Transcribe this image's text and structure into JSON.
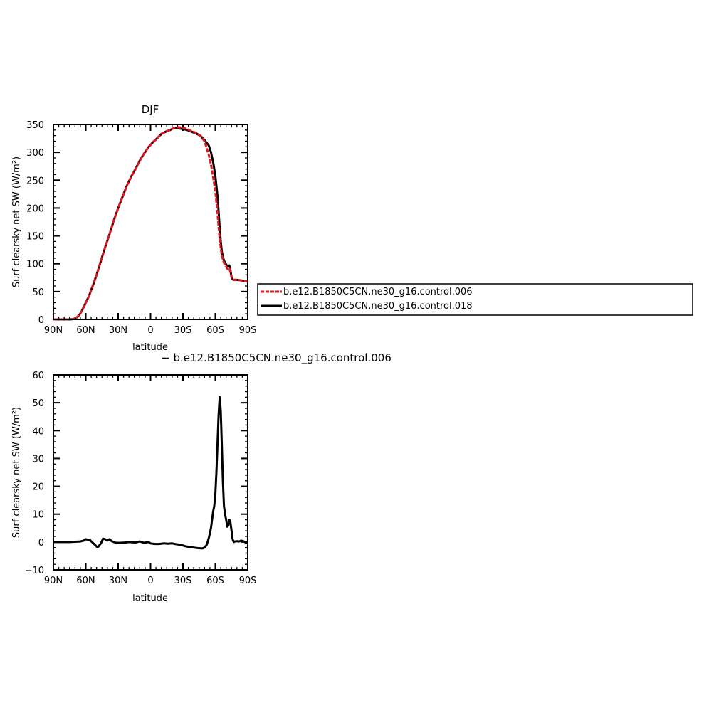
{
  "chart_data": [
    {
      "type": "line",
      "title": "DJF",
      "xlabel": "latitude",
      "ylabel": "Surf clearsky net SW (W/m²)",
      "xlim": [
        90,
        -90
      ],
      "ylim": [
        0,
        350
      ],
      "x_ticks": [
        90,
        60,
        30,
        0,
        -30,
        -60,
        -90
      ],
      "x_tick_labels": [
        "90N",
        "60N",
        "30N",
        "0",
        "30S",
        "60S",
        "90S"
      ],
      "y_ticks": [
        0,
        50,
        100,
        150,
        200,
        250,
        300,
        350
      ],
      "y_tick_labels": [
        "0",
        "50",
        "100",
        "150",
        "200",
        "250",
        "300",
        "350"
      ],
      "legend": "right",
      "series": [
        {
          "name": "b.e12.B1850C5CN.ne30_g16.control.006",
          "color": "#e8141e",
          "dash": "dashed",
          "x": [
            90,
            80,
            75,
            72,
            70,
            68,
            66,
            64,
            62,
            60,
            57,
            54,
            50,
            46,
            42,
            38,
            34,
            30,
            26,
            22,
            18,
            14,
            10,
            6,
            2,
            -2,
            -6,
            -10,
            -14,
            -18,
            -22,
            -26,
            -30,
            -34,
            -38,
            -42,
            -46,
            -50,
            -54,
            -56,
            -58,
            -60,
            -62,
            -63,
            -64,
            -65,
            -66,
            -67,
            -68,
            -69,
            -70,
            -71,
            -72,
            -73,
            -74,
            -75,
            -76,
            -77,
            -78,
            -80,
            -84,
            -90
          ],
          "y": [
            0,
            0,
            0,
            0.5,
            1.5,
            4,
            8,
            14,
            22,
            30,
            42,
            58,
            80,
            105,
            130,
            153,
            178,
            200,
            220,
            240,
            256,
            270,
            285,
            298,
            309,
            318,
            325,
            333,
            337,
            340,
            344,
            345,
            344,
            342,
            338,
            335,
            330,
            320,
            295,
            278,
            255,
            230,
            192,
            168,
            145,
            128,
            115,
            108,
            102,
            97,
            95,
            91,
            90,
            91,
            85,
            75,
            72,
            71,
            71,
            71,
            70,
            68
          ]
        },
        {
          "name": "b.e12.B1850C5CN.ne30_g16.control.018",
          "color": "#000000",
          "dash": "solid",
          "x": [
            90,
            80,
            75,
            72,
            70,
            68,
            66,
            64,
            62,
            60,
            57,
            54,
            50,
            46,
            42,
            38,
            34,
            30,
            26,
            22,
            18,
            14,
            10,
            6,
            2,
            -2,
            -6,
            -10,
            -14,
            -18,
            -22,
            -26,
            -30,
            -34,
            -38,
            -42,
            -46,
            -50,
            -54,
            -56,
            -58,
            -60,
            -62,
            -63,
            -64,
            -65,
            -66,
            -67,
            -68,
            -69,
            -70,
            -71,
            -72,
            -73,
            -74,
            -75,
            -76,
            -77,
            -78,
            -80,
            -84,
            -90
          ],
          "y": [
            0,
            0,
            0,
            0.5,
            1.5,
            4,
            8,
            14,
            22,
            30,
            42,
            58,
            80,
            105,
            130,
            153,
            178,
            200,
            220,
            240,
            256,
            270,
            285,
            298,
            309,
            318,
            325,
            333,
            337,
            340,
            344,
            343,
            342,
            340,
            337,
            334,
            330,
            322,
            312,
            300,
            282,
            258,
            222,
            195,
            165,
            140,
            122,
            112,
            106,
            102,
            99,
            95,
            96,
            97,
            88,
            76,
            72,
            71,
            71,
            71,
            70,
            68
          ]
        }
      ]
    },
    {
      "type": "line",
      "title": "− b.e12.B1850C5CN.ne30_g16.control.006",
      "xlabel": "latitude",
      "ylabel": "Surf clearsky net SW (W/m²)",
      "xlim": [
        90,
        -90
      ],
      "ylim": [
        -10,
        60
      ],
      "x_ticks": [
        90,
        60,
        30,
        0,
        -30,
        -60,
        -90
      ],
      "x_tick_labels": [
        "90N",
        "60N",
        "30N",
        "0",
        "30S",
        "60S",
        "90S"
      ],
      "y_ticks": [
        -10,
        0,
        10,
        20,
        30,
        40,
        50,
        60
      ],
      "y_tick_labels": [
        "−10",
        "0",
        "10",
        "20",
        "30",
        "40",
        "50",
        "60"
      ],
      "series": [
        {
          "color": "#000000",
          "dash": "solid",
          "x": [
            90,
            75,
            65,
            62,
            60,
            58,
            56,
            52,
            49,
            46,
            44,
            42,
            40,
            38,
            36,
            32,
            28,
            24,
            20,
            14,
            10,
            6,
            2,
            0,
            -4,
            -8,
            -12,
            -16,
            -20,
            -24,
            -28,
            -32,
            -36,
            -40,
            -44,
            -48,
            -50,
            -52,
            -54,
            -56,
            -57,
            -58,
            -59,
            -60,
            -61,
            -62,
            -63,
            -64,
            -65,
            -66,
            -67,
            -68,
            -69,
            -70,
            -71,
            -72,
            -73,
            -74,
            -75,
            -76,
            -77,
            -78,
            -80,
            -82,
            -84,
            -86,
            -88,
            -90
          ],
          "y": [
            0,
            0,
            0.2,
            0.5,
            1,
            0.8,
            0.6,
            -0.8,
            -2,
            -0.5,
            1.2,
            1,
            0.5,
            1,
            0.3,
            -0.3,
            -0.3,
            -0.2,
            0,
            -0.2,
            0.2,
            -0.3,
            0,
            -0.5,
            -0.7,
            -0.7,
            -0.5,
            -0.6,
            -0.5,
            -0.8,
            -1,
            -1.5,
            -1.8,
            -2,
            -2.2,
            -2.3,
            -2,
            -1,
            1.5,
            5,
            8,
            11,
            13,
            17,
            25,
            35,
            45,
            52,
            47,
            35,
            22,
            13,
            10,
            8,
            5.5,
            6,
            8,
            7,
            4,
            1,
            0,
            0.2,
            0.3,
            0.2,
            0.5,
            0.3,
            -0.2,
            -0.5
          ]
        }
      ]
    }
  ]
}
